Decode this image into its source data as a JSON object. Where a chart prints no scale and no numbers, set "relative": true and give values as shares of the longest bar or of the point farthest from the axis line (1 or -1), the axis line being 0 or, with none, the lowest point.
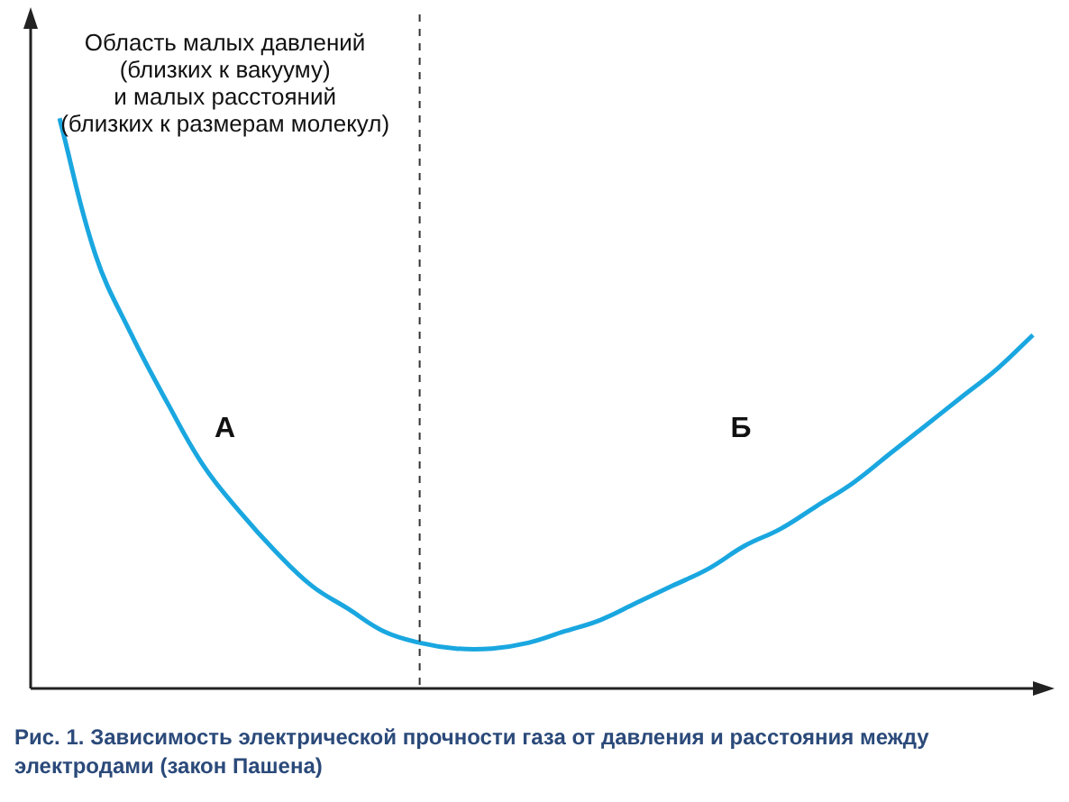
{
  "chart_data": {
    "type": "line",
    "relative": true,
    "title": "Рис. 1. Зависимость электрической прочности газа от давления и расстояния между электродами (закон Пашена)",
    "categories": [
      null,
      null,
      null,
      null,
      null,
      null,
      null,
      null,
      null,
      null,
      null,
      null,
      null,
      null,
      null,
      null,
      null,
      null,
      null,
      null,
      null,
      null,
      null,
      null,
      null,
      null,
      null,
      null
    ],
    "series": [
      {
        "color": "#1aa7e0",
        "values": [
          1.0,
          0.76,
          0.62,
          0.5,
          0.39,
          0.31,
          0.24,
          0.18,
          0.14,
          0.1,
          0.08,
          0.07,
          0.07,
          0.08,
          0.1,
          0.12,
          0.15,
          0.18,
          0.21,
          0.25,
          0.28,
          0.32,
          0.36,
          0.41,
          0.46,
          0.51,
          0.56,
          0.62
        ]
      }
    ],
    "annotations": [
      "Область малых давлений\n(близких к вакууму)\nи малых расстояний\n(близких к размерам молекул)",
      "А",
      "Б"
    ],
    "legend": false,
    "marker": "none",
    "line_style": "solid"
  }
}
